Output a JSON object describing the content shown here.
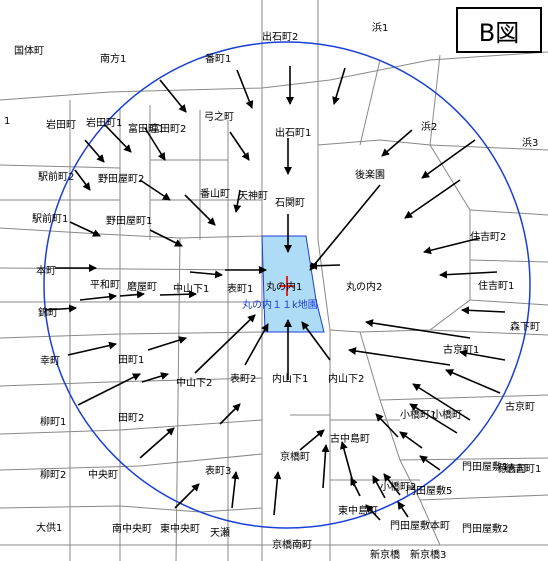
{
  "title": "B図",
  "center_label": "丸の内１１k地園",
  "colors": {
    "circle": "#1a3fd6",
    "highlight": "#aedcf6",
    "arrow": "#000000",
    "marker": "#e2261f",
    "street": "#888888"
  },
  "area_labels": [
    "浜1",
    "国体町",
    "南方1",
    "番町1",
    "出石町2",
    "浜2",
    "浜3",
    "岩田町",
    "岩田町1",
    "富田町1",
    "富田町2",
    "弓之町",
    "出石町1",
    "後楽園",
    "駅前町2",
    "野田屋町2",
    "番山町",
    "天神町",
    "石関町",
    "駅前町1",
    "野田屋町1",
    "住吉町2",
    "本町",
    "平和町",
    "磨屋町",
    "中山下1",
    "表町1",
    "丸の内1",
    "丸の内2",
    "住吉町1",
    "森下町",
    "錦町",
    "幸町",
    "田町1",
    "中山下2",
    "表町2",
    "内山下1",
    "内山下2",
    "古京町1",
    "古京町",
    "柳町1",
    "田町2",
    "小橋町1",
    "小橋町",
    "徳吉町1",
    "京橋町",
    "古中島町",
    "門田屋敷1",
    "徳吉町",
    "柳町2",
    "中央町",
    "表町3",
    "東中島町",
    "小橋町2",
    "門田屋敷5",
    "大供1",
    "南中央町",
    "東中央町",
    "天瀬",
    "京橋南町",
    "門田屋敷本町",
    "門田屋敷2",
    "新京橋",
    "新京橋3",
    "1"
  ]
}
